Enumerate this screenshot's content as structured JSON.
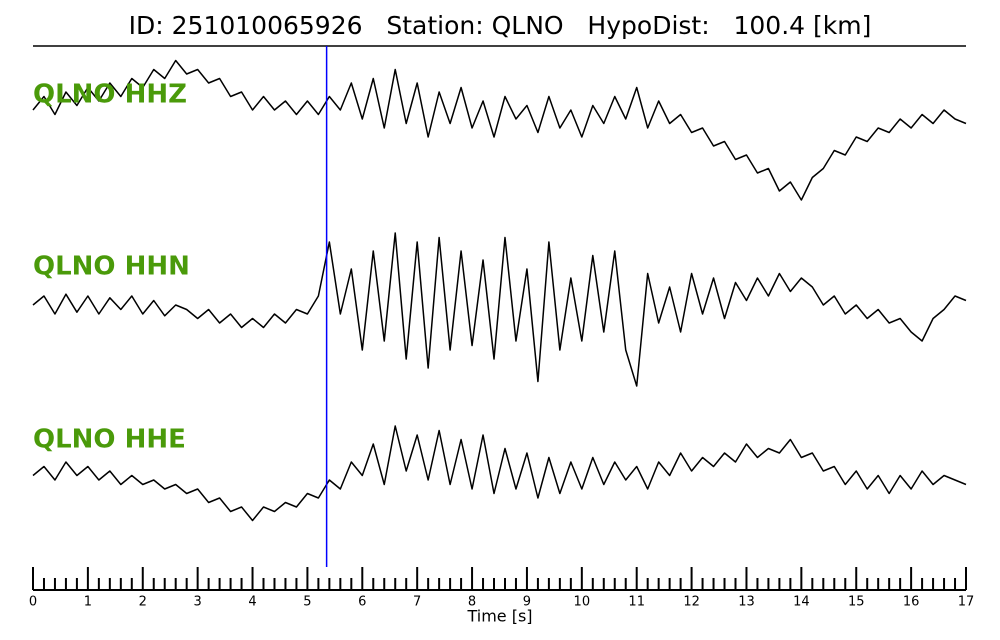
{
  "chart_data": {
    "type": "line",
    "title": "ID: 251010065926   Station: QLNO   HypoDist:   100.4 [km]",
    "x_label": "Time [s]",
    "xlim": [
      0,
      17
    ],
    "xticks": [
      0,
      1,
      2,
      3,
      4,
      5,
      6,
      7,
      8,
      9,
      10,
      11,
      12,
      13,
      14,
      15,
      16,
      17
    ],
    "xminorticks": [
      0.2,
      0.4,
      0.6,
      0.8,
      1.2,
      1.4,
      1.6,
      1.8,
      2.2,
      2.4,
      2.6,
      2.8,
      3.2,
      3.4,
      3.6,
      3.8,
      4.2,
      4.4,
      4.6,
      4.8,
      5.2,
      5.4,
      5.6,
      5.8,
      6.2,
      6.4,
      6.6,
      6.8,
      7.2,
      7.4,
      7.6,
      7.8,
      8.2,
      8.4,
      8.6,
      8.8,
      9.2,
      9.4,
      9.6,
      9.8,
      10.2,
      10.4,
      10.6,
      10.8,
      11.2,
      11.4,
      11.6,
      11.8,
      12.2,
      12.4,
      12.6,
      12.8,
      13.2,
      13.4,
      13.6,
      13.8,
      14.2,
      14.4,
      14.6,
      14.8,
      15.2,
      15.4,
      15.6,
      15.8,
      16.2,
      16.4,
      16.6,
      16.8
    ],
    "pick": 5.35,
    "pick_color": "#0000ff",
    "label_color": "#4a9a0a",
    "x": [
      0,
      0.2,
      0.4,
      0.6,
      0.8,
      1,
      1.2,
      1.4,
      1.6,
      1.8,
      2,
      2.2,
      2.4,
      2.6,
      2.8,
      3,
      3.2,
      3.4,
      3.6,
      3.8,
      4,
      4.2,
      4.4,
      4.6,
      4.8,
      5,
      5.2,
      5.4,
      5.6,
      5.8,
      6,
      6.2,
      6.4,
      6.6,
      6.8,
      7,
      7.2,
      7.4,
      7.6,
      7.8,
      8,
      8.2,
      8.4,
      8.6,
      8.8,
      9,
      9.2,
      9.4,
      9.6,
      9.8,
      10,
      10.2,
      10.4,
      10.6,
      10.8,
      11,
      11.2,
      11.4,
      11.6,
      11.8,
      12,
      12.2,
      12.4,
      12.6,
      12.8,
      13,
      13.2,
      13.4,
      13.6,
      13.8,
      14,
      14.2,
      14.4,
      14.6,
      14.8,
      15,
      15.2,
      15.4,
      15.6,
      15.8,
      16,
      16.2,
      16.4,
      16.6,
      16.8,
      17
    ],
    "series": [
      {
        "name": "QLNO HHZ",
        "color": "#000000",
        "ylim": [
          -1,
          1
        ],
        "values": [
          0.0,
          0.15,
          -0.05,
          0.2,
          0.05,
          0.25,
          0.1,
          0.3,
          0.15,
          0.35,
          0.25,
          0.45,
          0.35,
          0.55,
          0.4,
          0.45,
          0.3,
          0.35,
          0.15,
          0.2,
          0.0,
          0.15,
          0.0,
          0.1,
          -0.05,
          0.1,
          -0.05,
          0.15,
          0.0,
          0.3,
          -0.1,
          0.35,
          -0.2,
          0.45,
          -0.15,
          0.3,
          -0.3,
          0.2,
          -0.15,
          0.25,
          -0.2,
          0.1,
          -0.3,
          0.15,
          -0.1,
          0.05,
          -0.25,
          0.15,
          -0.2,
          0.0,
          -0.3,
          0.05,
          -0.15,
          0.15,
          -0.1,
          0.25,
          -0.2,
          0.1,
          -0.15,
          -0.05,
          -0.25,
          -0.2,
          -0.4,
          -0.35,
          -0.55,
          -0.5,
          -0.7,
          -0.65,
          -0.9,
          -0.8,
          -1.0,
          -0.75,
          -0.65,
          -0.45,
          -0.5,
          -0.3,
          -0.35,
          -0.2,
          -0.25,
          -0.1,
          -0.2,
          -0.05,
          -0.15,
          0.0,
          -0.1,
          -0.15
        ]
      },
      {
        "name": "QLNO HHN",
        "color": "#000000",
        "ylim": [
          -1,
          1
        ],
        "values": [
          0.0,
          0.1,
          -0.1,
          0.12,
          -0.08,
          0.1,
          -0.1,
          0.08,
          -0.05,
          0.1,
          -0.1,
          0.05,
          -0.12,
          0.0,
          -0.05,
          -0.15,
          -0.05,
          -0.2,
          -0.1,
          -0.25,
          -0.15,
          -0.25,
          -0.1,
          -0.2,
          -0.05,
          -0.1,
          0.1,
          0.7,
          -0.1,
          0.4,
          -0.5,
          0.6,
          -0.4,
          0.8,
          -0.6,
          0.7,
          -0.7,
          0.75,
          -0.5,
          0.6,
          -0.45,
          0.5,
          -0.6,
          0.75,
          -0.4,
          0.4,
          -0.85,
          0.7,
          -0.5,
          0.3,
          -0.4,
          0.55,
          -0.3,
          0.6,
          -0.5,
          -0.9,
          0.35,
          -0.2,
          0.2,
          -0.3,
          0.35,
          -0.1,
          0.3,
          -0.15,
          0.25,
          0.05,
          0.3,
          0.1,
          0.35,
          0.15,
          0.3,
          0.2,
          0.0,
          0.1,
          -0.1,
          0.0,
          -0.15,
          -0.05,
          -0.2,
          -0.15,
          -0.3,
          -0.4,
          -0.15,
          -0.05,
          0.1,
          0.05
        ]
      },
      {
        "name": "QLNO HHE",
        "color": "#000000",
        "ylim": [
          -1,
          1
        ],
        "values": [
          0.05,
          0.15,
          0.0,
          0.2,
          0.05,
          0.15,
          0.0,
          0.1,
          -0.05,
          0.05,
          -0.05,
          0.0,
          -0.1,
          -0.05,
          -0.15,
          -0.1,
          -0.25,
          -0.2,
          -0.35,
          -0.3,
          -0.45,
          -0.3,
          -0.35,
          -0.25,
          -0.3,
          -0.15,
          -0.2,
          0.0,
          -0.1,
          0.2,
          0.05,
          0.4,
          -0.05,
          0.6,
          0.1,
          0.5,
          0.0,
          0.55,
          -0.05,
          0.45,
          -0.1,
          0.5,
          -0.15,
          0.35,
          -0.1,
          0.3,
          -0.2,
          0.25,
          -0.15,
          0.2,
          -0.1,
          0.25,
          -0.05,
          0.2,
          0.0,
          0.15,
          -0.1,
          0.2,
          0.05,
          0.3,
          0.1,
          0.25,
          0.15,
          0.3,
          0.2,
          0.4,
          0.25,
          0.35,
          0.3,
          0.45,
          0.25,
          0.3,
          0.1,
          0.15,
          -0.05,
          0.1,
          -0.1,
          0.05,
          -0.15,
          0.05,
          -0.1,
          0.1,
          -0.05,
          0.05,
          0.0,
          -0.05
        ]
      }
    ]
  }
}
